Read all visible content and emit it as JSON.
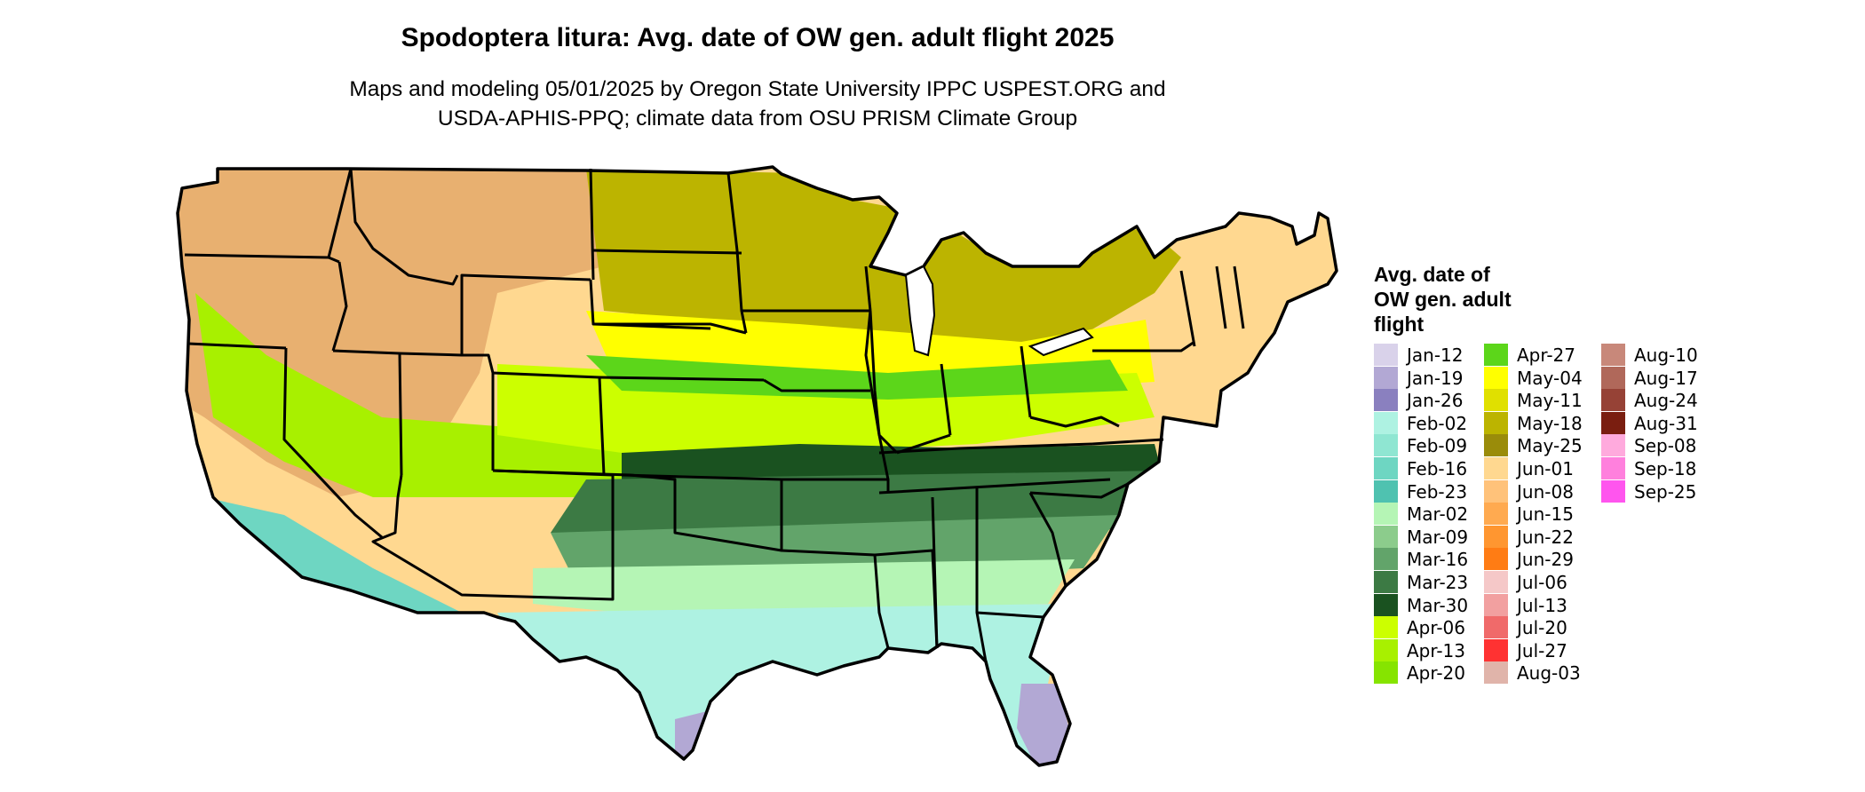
{
  "title": "Spodoptera litura: Avg. date of OW gen. adult flight 2025",
  "subtitle_line1": "Maps and modeling 05/01/2025 by Oregon State University IPPC USPEST.ORG and",
  "subtitle_line2": "USDA-APHIS-PPQ; climate data from OSU PRISM Climate Group",
  "legend": {
    "title_line1": "Avg. date of",
    "title_line2": "OW gen. adult",
    "title_line3": "flight",
    "columns": [
      [
        {
          "label": "Jan-12",
          "color": "#d9d2ea"
        },
        {
          "label": "Jan-19",
          "color": "#b2a8d4"
        },
        {
          "label": "Jan-26",
          "color": "#8a80bf"
        },
        {
          "label": "Feb-02",
          "color": "#aef2e2"
        },
        {
          "label": "Feb-09",
          "color": "#8fe6d2"
        },
        {
          "label": "Feb-16",
          "color": "#6ed6c2"
        },
        {
          "label": "Feb-23",
          "color": "#4fc2b0"
        },
        {
          "label": "Mar-02",
          "color": "#b5f5b5"
        },
        {
          "label": "Mar-09",
          "color": "#8ccc8c"
        },
        {
          "label": "Mar-16",
          "color": "#62a46a"
        },
        {
          "label": "Mar-23",
          "color": "#3c7a44"
        },
        {
          "label": "Mar-30",
          "color": "#1a5220"
        },
        {
          "label": "Apr-06",
          "color": "#ccff00"
        },
        {
          "label": "Apr-13",
          "color": "#a8f000"
        },
        {
          "label": "Apr-20",
          "color": "#86e400"
        }
      ],
      [
        {
          "label": "Apr-27",
          "color": "#5cd61a"
        },
        {
          "label": "May-04",
          "color": "#ffff00"
        },
        {
          "label": "May-11",
          "color": "#e0e000"
        },
        {
          "label": "May-18",
          "color": "#bcb400"
        },
        {
          "label": "May-25",
          "color": "#9a8c0a"
        },
        {
          "label": "Jun-01",
          "color": "#ffd890"
        },
        {
          "label": "Jun-08",
          "color": "#ffc27a"
        },
        {
          "label": "Jun-15",
          "color": "#ffaa50"
        },
        {
          "label": "Jun-22",
          "color": "#ff9630"
        },
        {
          "label": "Jun-29",
          "color": "#ff7c14"
        },
        {
          "label": "Jul-06",
          "color": "#f5c8c8"
        },
        {
          "label": "Jul-13",
          "color": "#f2a0a0"
        },
        {
          "label": "Jul-20",
          "color": "#f06a6a"
        },
        {
          "label": "Jul-27",
          "color": "#ff3232"
        },
        {
          "label": "Aug-03",
          "color": "#e0b4aa"
        }
      ],
      [
        {
          "label": "Aug-10",
          "color": "#c8887a"
        },
        {
          "label": "Aug-17",
          "color": "#b0685a"
        },
        {
          "label": "Aug-24",
          "color": "#964236"
        },
        {
          "label": "Aug-31",
          "color": "#7a1e10"
        },
        {
          "label": "Sep-08",
          "color": "#ffaadd"
        },
        {
          "label": "Sep-18",
          "color": "#ff80dd"
        },
        {
          "label": "Sep-25",
          "color": "#ff55ee"
        }
      ]
    ]
  },
  "map_colors": {
    "north": "#ffd890",
    "northwest": "#e8b070",
    "plains": "#bcb400",
    "midwest": "#ffff00",
    "transition": "#ccff00",
    "green": "#5cd61a",
    "dark_band": "#1a5220",
    "south_dark": "#3c7a44",
    "south_mid": "#62a46a",
    "gulf_light": "#b5f5b5",
    "coast": "#aef2e2",
    "coast2": "#6ed6c2",
    "tip": "#b2a8d4",
    "west_mix": "#a8f000"
  }
}
